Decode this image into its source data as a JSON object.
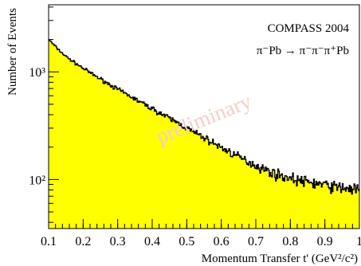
{
  "chart_data": {
    "type": "area",
    "title": "",
    "xlabel": "Momentum Transfer t' (GeV²/c²)",
    "ylabel": "Number of Events",
    "xlim": [
      0.1,
      1.0
    ],
    "ylim": [
      35,
      4200
    ],
    "y_scale": "log",
    "grid": false,
    "x_ticks": [
      0.1,
      0.2,
      0.3,
      0.4,
      0.5,
      0.6,
      0.7,
      0.8,
      0.9,
      1.0
    ],
    "x_tick_labels": [
      "0.1",
      "0.2",
      "0.3",
      "0.4",
      "0.5",
      "0.6",
      "0.7",
      "0.8",
      "0.9",
      "1"
    ],
    "y_ticks": [
      100,
      1000
    ],
    "y_tick_labels": [
      "10²",
      "10³"
    ],
    "annotations": [
      {
        "text": "COMPASS 2004",
        "position": "top-right"
      },
      {
        "text": "π⁻Pb → π⁻π⁻π⁺Pb",
        "position": "top-right"
      },
      {
        "text": "preliminary",
        "position": "center",
        "kind": "watermark"
      }
    ],
    "fill_color": "#ffff00",
    "line_color": "#000000",
    "series": [
      {
        "x": [
          0.1,
          0.125,
          0.15,
          0.175,
          0.2,
          0.225,
          0.25,
          0.275,
          0.3,
          0.325,
          0.35,
          0.375,
          0.4,
          0.425,
          0.45,
          0.475,
          0.5,
          0.525,
          0.55,
          0.575,
          0.6,
          0.625,
          0.65,
          0.675,
          0.7,
          0.725,
          0.75,
          0.775,
          0.8,
          0.825,
          0.85,
          0.875,
          0.9,
          0.925,
          0.95,
          0.975,
          1.0
        ],
        "values": [
          2000,
          1650,
          1390,
          1220,
          1080,
          960,
          860,
          770,
          690,
          620,
          560,
          505,
          455,
          410,
          370,
          335,
          300,
          270,
          245,
          220,
          198,
          180,
          162,
          148,
          135,
          124,
          115,
          108,
          103,
          98,
          95,
          92,
          89,
          86,
          84,
          82,
          80
        ]
      }
    ]
  }
}
